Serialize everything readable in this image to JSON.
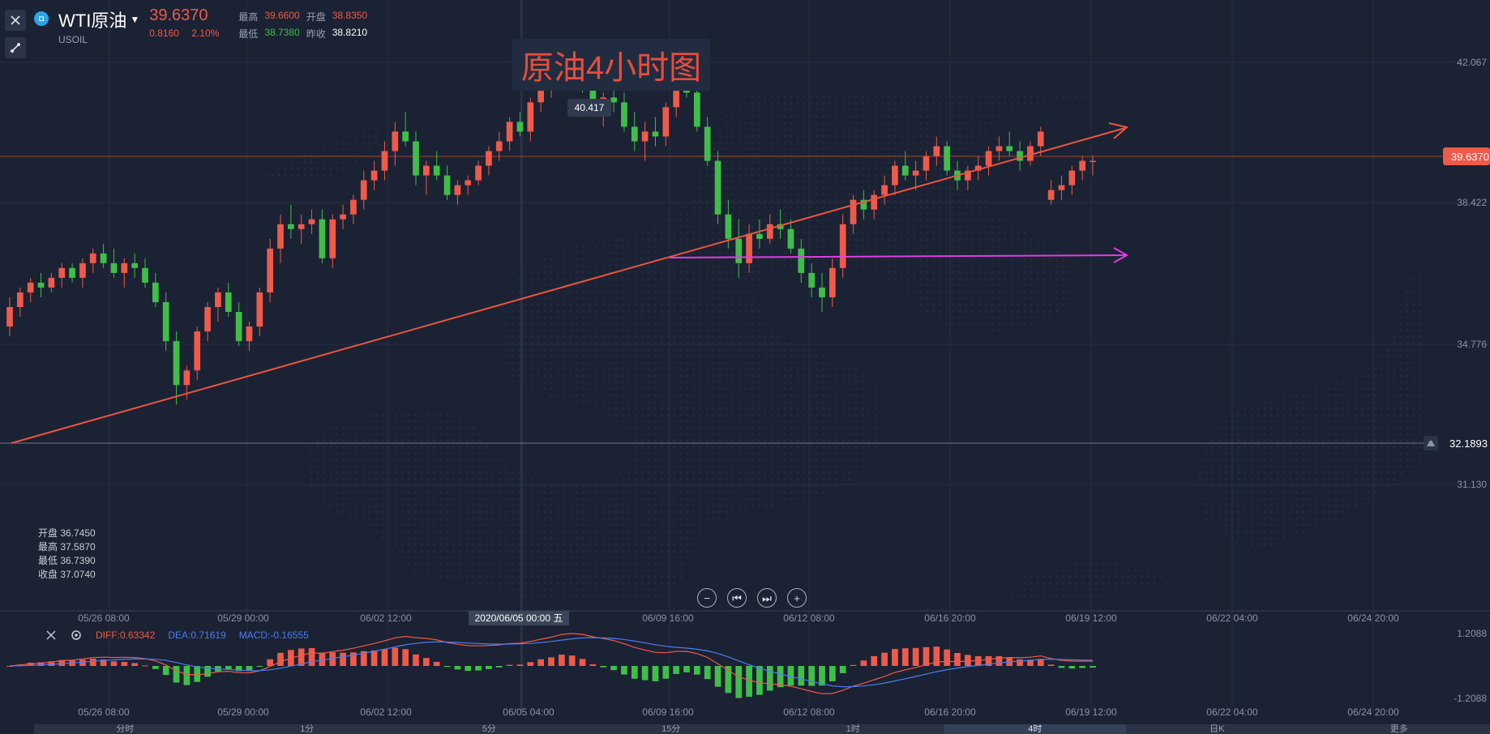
{
  "header": {
    "symbol": "WTI原油",
    "code": "USOIL",
    "last_price": "39.6370",
    "change": "0.8160",
    "change_pct": "2.10%",
    "stats": {
      "high_label": "最高",
      "high": "39.6600",
      "open_label": "开盘",
      "open": "38.8350",
      "low_label": "最低",
      "low": "38.7380",
      "prev_close_label": "昨收",
      "prev_close": "38.8210"
    }
  },
  "chart_title": "原油4小时图",
  "peak_label": "40.417",
  "price_axis": {
    "labels": [
      "42.067",
      "38.422",
      "34.776",
      "31.130"
    ],
    "current_price_tag": "39.6370",
    "alert_price_tag": "32.1893"
  },
  "time_axis": {
    "labels": [
      "05/26 08:00",
      "05/29 00:00",
      "06/02 12:00",
      "06/09 16:00",
      "06/12 08:00",
      "06/16 20:00",
      "06/19 12:00",
      "06/22 04:00",
      "06/24 20:00"
    ],
    "crosshair_label": "2020/06/05 00:00 五"
  },
  "macd_time_axis": {
    "labels": [
      "05/26 08:00",
      "05/29 00:00",
      "06/02 12:00",
      "06/05 04:00",
      "06/09 16:00",
      "06/12 08:00",
      "06/16 20:00",
      "06/19 12:00",
      "06/22 04:00",
      "06/24 20:00"
    ]
  },
  "ohlc_tooltip": {
    "open": "开盘 36.7450",
    "high": "最高 37.5870",
    "low": "最低 36.7390",
    "close": "收盘 37.0740"
  },
  "macd": {
    "diff": "DIFF:0.63342",
    "dea": "DEA:0.71619",
    "macd": "MACD:-0.16555",
    "axis_top": "1.2088",
    "axis_bottom": "-1.2088"
  },
  "tabs": [
    "分时",
    "1分",
    "5分",
    "15分",
    "1时",
    "4时",
    "日K",
    "更多"
  ],
  "colors": {
    "background": "#1b2233",
    "up": "#ef5a4a",
    "down": "#3fbf4a",
    "trendline": "#e9563f",
    "support": "#e23ce6",
    "diff_line": "#ef5a4a",
    "dea_line": "#4b7cf0"
  },
  "icons": {
    "close": "close-icon",
    "draw": "draw-tool-icon",
    "settings": "settings-icon",
    "alert": "bell-icon",
    "zoom_out": "zoom-out-icon",
    "rewind": "rewind-icon",
    "forward": "forward-icon",
    "zoom_in": "zoom-in-icon"
  },
  "chart_data": {
    "type": "candlestick",
    "xlabel": "",
    "ylabel": "",
    "ylim": [
      30.4,
      42.9
    ],
    "candles": [
      [
        36.2,
        36.8,
        36.0,
        36.6
      ],
      [
        36.6,
        37.0,
        36.4,
        36.9
      ],
      [
        36.9,
        37.2,
        36.7,
        37.1
      ],
      [
        37.1,
        37.3,
        36.8,
        37.0
      ],
      [
        37.0,
        37.3,
        36.9,
        37.2
      ],
      [
        37.2,
        37.5,
        37.0,
        37.4
      ],
      [
        37.4,
        37.5,
        37.1,
        37.2
      ],
      [
        37.2,
        37.6,
        37.0,
        37.5
      ],
      [
        37.5,
        37.8,
        37.3,
        37.7
      ],
      [
        37.7,
        37.9,
        37.4,
        37.5
      ],
      [
        37.5,
        37.8,
        37.2,
        37.3
      ],
      [
        37.3,
        37.6,
        37.0,
        37.5
      ],
      [
        37.5,
        37.7,
        37.2,
        37.4
      ],
      [
        37.4,
        37.6,
        37.0,
        37.1
      ],
      [
        37.1,
        37.3,
        36.6,
        36.7
      ],
      [
        36.7,
        36.9,
        35.7,
        35.9
      ],
      [
        35.9,
        36.1,
        34.6,
        35.0
      ],
      [
        35.0,
        35.4,
        34.7,
        35.3
      ],
      [
        35.3,
        36.2,
        35.1,
        36.1
      ],
      [
        36.1,
        36.7,
        35.9,
        36.6
      ],
      [
        36.6,
        37.0,
        36.3,
        36.9
      ],
      [
        36.9,
        37.1,
        36.4,
        36.5
      ],
      [
        36.5,
        36.7,
        35.8,
        35.9
      ],
      [
        35.9,
        36.3,
        35.7,
        36.2
      ],
      [
        36.2,
        37.0,
        36.0,
        36.9
      ],
      [
        36.9,
        38.0,
        36.7,
        37.8
      ],
      [
        37.8,
        38.5,
        37.5,
        38.3
      ],
      [
        38.3,
        38.7,
        38.0,
        38.2
      ],
      [
        38.2,
        38.5,
        37.9,
        38.3
      ],
      [
        38.3,
        38.6,
        38.1,
        38.4
      ],
      [
        38.4,
        38.6,
        37.5,
        37.6
      ],
      [
        37.6,
        38.5,
        37.4,
        38.4
      ],
      [
        38.4,
        38.7,
        38.2,
        38.5
      ],
      [
        38.5,
        38.9,
        38.3,
        38.8
      ],
      [
        38.8,
        39.4,
        38.6,
        39.2
      ],
      [
        39.2,
        39.6,
        39.0,
        39.4
      ],
      [
        39.4,
        40.0,
        39.2,
        39.8
      ],
      [
        39.8,
        40.4,
        39.5,
        40.2
      ],
      [
        40.2,
        40.6,
        39.9,
        40.0
      ],
      [
        40.0,
        40.2,
        39.1,
        39.3
      ],
      [
        39.3,
        39.6,
        38.9,
        39.5
      ],
      [
        39.5,
        39.8,
        39.2,
        39.3
      ],
      [
        39.3,
        39.5,
        38.8,
        38.9
      ],
      [
        38.9,
        39.2,
        38.7,
        39.1
      ],
      [
        39.1,
        39.3,
        38.9,
        39.2
      ],
      [
        39.2,
        39.6,
        39.1,
        39.5
      ],
      [
        39.5,
        39.9,
        39.3,
        39.8
      ],
      [
        39.8,
        40.2,
        39.6,
        40.0
      ],
      [
        40.0,
        40.5,
        39.8,
        40.4
      ],
      [
        40.4,
        40.6,
        40.1,
        40.2
      ],
      [
        40.2,
        40.9,
        40.0,
        40.8
      ],
      [
        40.8,
        41.5,
        40.6,
        41.2
      ],
      [
        41.2,
        41.6,
        40.9,
        41.4
      ],
      [
        41.4,
        42.0,
        41.2,
        41.9
      ],
      [
        41.9,
        42.1,
        41.5,
        41.6
      ],
      [
        41.6,
        41.8,
        41.0,
        41.2
      ],
      [
        41.2,
        41.4,
        40.5,
        40.7
      ],
      [
        40.7,
        41.0,
        40.3,
        40.9
      ],
      [
        40.9,
        41.2,
        40.6,
        40.8
      ],
      [
        40.8,
        41.0,
        40.2,
        40.3
      ],
      [
        40.3,
        40.6,
        39.8,
        40.0
      ],
      [
        40.0,
        40.4,
        39.6,
        40.2
      ],
      [
        40.2,
        40.5,
        39.9,
        40.1
      ],
      [
        40.1,
        40.8,
        39.9,
        40.7
      ],
      [
        40.7,
        41.5,
        40.5,
        41.3
      ],
      [
        41.3,
        41.7,
        40.9,
        41.0
      ],
      [
        41.0,
        41.2,
        40.2,
        40.3
      ],
      [
        40.3,
        40.5,
        39.5,
        39.6
      ],
      [
        39.6,
        39.8,
        38.3,
        38.5
      ],
      [
        38.5,
        38.8,
        37.8,
        38.0
      ],
      [
        38.0,
        38.4,
        37.2,
        37.5
      ],
      [
        37.5,
        38.3,
        37.3,
        38.1
      ],
      [
        38.1,
        38.4,
        37.8,
        38.0
      ],
      [
        38.0,
        38.5,
        37.9,
        38.3
      ],
      [
        38.3,
        38.6,
        38.0,
        38.2
      ],
      [
        38.2,
        38.4,
        37.7,
        37.8
      ],
      [
        37.8,
        38.0,
        37.1,
        37.3
      ],
      [
        37.3,
        37.5,
        36.8,
        37.0
      ],
      [
        37.0,
        37.3,
        36.5,
        36.8
      ],
      [
        36.8,
        37.6,
        36.6,
        37.4
      ],
      [
        37.4,
        38.5,
        37.2,
        38.3
      ],
      [
        38.3,
        38.9,
        38.1,
        38.8
      ],
      [
        38.8,
        39.0,
        38.4,
        38.6
      ],
      [
        38.6,
        39.0,
        38.4,
        38.9
      ],
      [
        38.9,
        39.3,
        38.7,
        39.1
      ],
      [
        39.1,
        39.6,
        38.9,
        39.5
      ],
      [
        39.5,
        39.8,
        39.2,
        39.3
      ],
      [
        39.3,
        39.6,
        39.0,
        39.4
      ],
      [
        39.4,
        39.8,
        39.2,
        39.7
      ],
      [
        39.7,
        40.1,
        39.5,
        39.9
      ],
      [
        39.9,
        40.0,
        39.3,
        39.4
      ],
      [
        39.4,
        39.6,
        39.0,
        39.2
      ],
      [
        39.2,
        39.5,
        39.0,
        39.4
      ],
      [
        39.4,
        39.7,
        39.2,
        39.5
      ],
      [
        39.5,
        39.9,
        39.3,
        39.8
      ],
      [
        39.8,
        40.1,
        39.6,
        39.9
      ],
      [
        39.9,
        40.2,
        39.7,
        39.8
      ],
      [
        39.8,
        40.0,
        39.4,
        39.6
      ],
      [
        39.6,
        40.0,
        39.5,
        39.9
      ],
      [
        39.9,
        40.3,
        39.7,
        40.2
      ],
      [
        38.8,
        39.2,
        38.7,
        39.0
      ],
      [
        39.0,
        39.3,
        38.8,
        39.1
      ],
      [
        39.1,
        39.5,
        38.9,
        39.4
      ],
      [
        39.4,
        39.7,
        39.2,
        39.6
      ],
      [
        39.6,
        39.7,
        39.3,
        39.6
      ]
    ]
  }
}
